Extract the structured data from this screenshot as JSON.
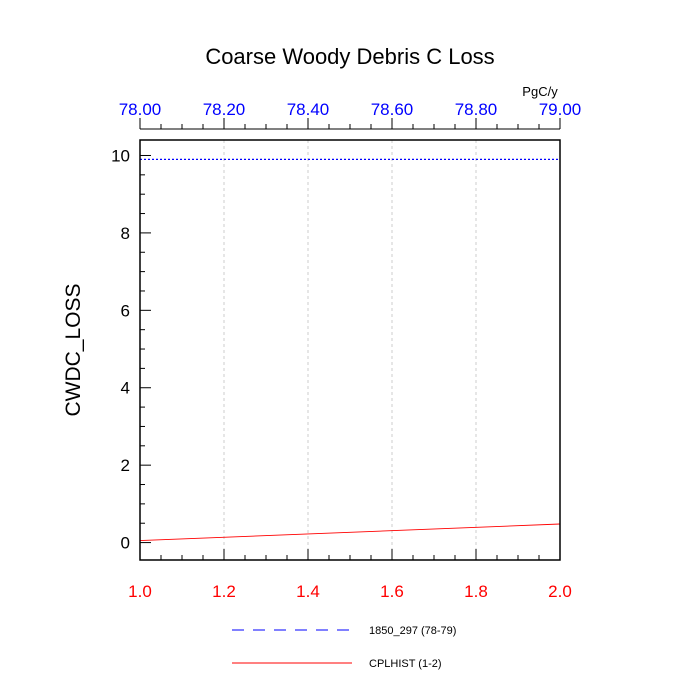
{
  "chart_data": {
    "type": "line",
    "title": "Coarse Woody Debris C Loss",
    "ylabel": "CWDC_LOSS",
    "units": "PgC/y",
    "ylim": [
      -0.45,
      10.4
    ],
    "y_ticks": [
      "0",
      "2",
      "4",
      "6",
      "8",
      "10"
    ],
    "grid": true,
    "bottom_axis": {
      "xlim": [
        1.0,
        2.0
      ],
      "ticks": [
        "1.0",
        "1.2",
        "1.4",
        "1.6",
        "1.8",
        "2.0"
      ],
      "color": "#ff0000"
    },
    "top_axis": {
      "xlim": [
        78.0,
        79.0
      ],
      "ticks": [
        "78.00",
        "78.20",
        "78.40",
        "78.60",
        "78.80",
        "79.00"
      ],
      "color": "#0000ff"
    },
    "series": [
      {
        "name": "1850_297 (78-79)",
        "axis": "top",
        "style": "dashed",
        "color": "#0000ff",
        "x": [
          78.0,
          79.0
        ],
        "y": [
          9.9,
          9.9
        ]
      },
      {
        "name": "CPLHIST (1-2)",
        "axis": "bottom",
        "style": "solid",
        "color": "#ff0000",
        "x": [
          1.0,
          2.0
        ],
        "y": [
          0.05,
          0.48
        ]
      }
    ],
    "legend_position": "bottom-center"
  }
}
